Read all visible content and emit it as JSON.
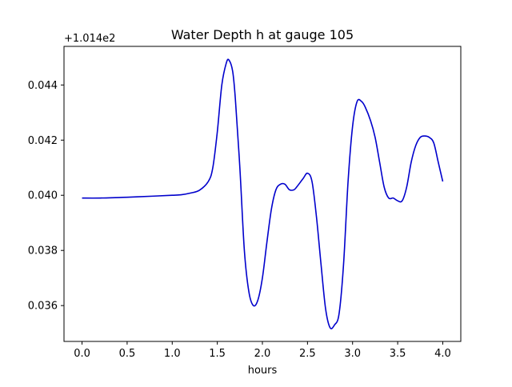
{
  "chart_data": {
    "type": "line",
    "title": "Water Depth h at gauge 105",
    "xlabel": "hours",
    "ylabel": "",
    "y_offset_label": "+1.014e2",
    "xlim": [
      -0.2,
      4.2
    ],
    "ylim": [
      0.0347,
      0.0454
    ],
    "xticks": [
      0.0,
      0.5,
      1.0,
      1.5,
      2.0,
      2.5,
      3.0,
      3.5,
      4.0
    ],
    "xtick_labels": [
      "0.0",
      "0.5",
      "1.0",
      "1.5",
      "2.0",
      "2.5",
      "3.0",
      "3.5",
      "4.0"
    ],
    "yticks": [
      0.036,
      0.038,
      0.04,
      0.042,
      0.044
    ],
    "ytick_labels": [
      "0.036",
      "0.038",
      "0.040",
      "0.042",
      "0.044"
    ],
    "grid": false,
    "line_color": "#0000cc",
    "series": [
      {
        "x": [
          0.0,
          0.2,
          0.5,
          0.8,
          1.0,
          1.1,
          1.2,
          1.3,
          1.4,
          1.45,
          1.5,
          1.55,
          1.6,
          1.63,
          1.67,
          1.7,
          1.75,
          1.8,
          1.85,
          1.9,
          1.95,
          2.0,
          2.05,
          2.1,
          2.15,
          2.2,
          2.25,
          2.3,
          2.35,
          2.38,
          2.45,
          2.5,
          2.55,
          2.6,
          2.65,
          2.7,
          2.75,
          2.8,
          2.85,
          2.9,
          2.95,
          3.0,
          3.05,
          3.1,
          3.14,
          3.2,
          3.25,
          3.3,
          3.35,
          3.4,
          3.45,
          3.5,
          3.55,
          3.6,
          3.65,
          3.7,
          3.75,
          3.8,
          3.85,
          3.9,
          3.95,
          4.0
        ],
        "y": [
          0.0399,
          0.0399,
          0.03993,
          0.03997,
          0.04,
          0.04002,
          0.04008,
          0.04018,
          0.0405,
          0.041,
          0.0423,
          0.044,
          0.0448,
          0.0449,
          0.0445,
          0.0435,
          0.041,
          0.038,
          0.0365,
          0.036,
          0.0362,
          0.037,
          0.0383,
          0.0395,
          0.0402,
          0.0404,
          0.0404,
          0.0402,
          0.0402,
          0.0403,
          0.0406,
          0.0408,
          0.0405,
          0.0392,
          0.0375,
          0.0359,
          0.0352,
          0.0353,
          0.0357,
          0.0375,
          0.0405,
          0.0425,
          0.0434,
          0.0434,
          0.0432,
          0.0427,
          0.0421,
          0.0412,
          0.0403,
          0.0399,
          0.0399,
          0.0398,
          0.0398,
          0.0403,
          0.0412,
          0.0418,
          0.0421,
          0.04215,
          0.0421,
          0.0419,
          0.0412,
          0.0405
        ]
      }
    ]
  }
}
